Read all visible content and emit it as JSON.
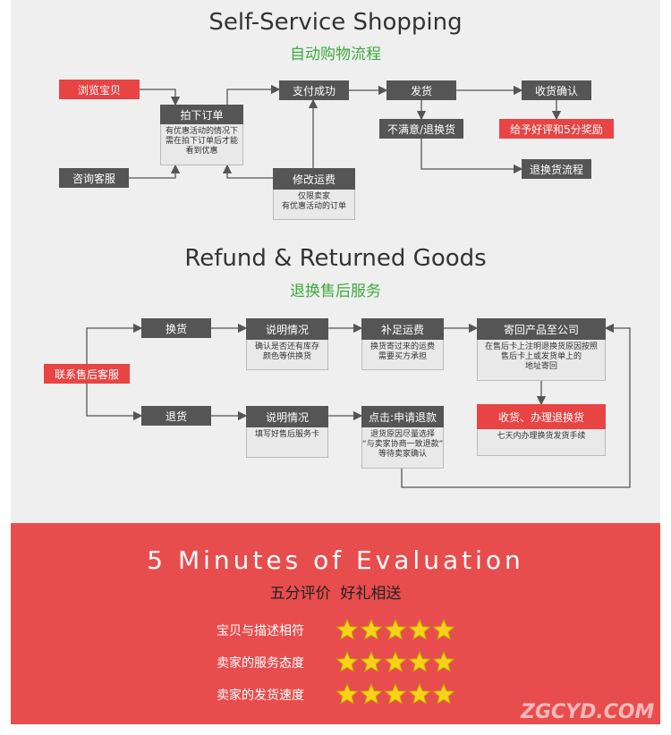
{
  "self_service": {
    "title": "Self-Service Shopping",
    "subtitle": "自动购物流程",
    "nodes": [
      {
        "label": "浏览宝贝"
      },
      {
        "label": "咨询客服"
      },
      {
        "label": "拍下订单",
        "note": [
          "有优惠活动的情况下",
          "需在拍下订单后才能",
          "看到优惠"
        ]
      },
      {
        "label": "支付成功"
      },
      {
        "label": "修改运费",
        "note": [
          "仅限卖家",
          "有优惠活动的订单"
        ]
      },
      {
        "label": "发货"
      },
      {
        "label": "不满意/退换货"
      },
      {
        "label": "收货确认"
      },
      {
        "label": "给予好评和5分奖励"
      },
      {
        "label": "退换货流程"
      }
    ]
  },
  "refund": {
    "title": "Refund & Returned Goods",
    "subtitle": "退换售后服务",
    "nodes": [
      {
        "label": "联系售后客服"
      },
      {
        "label": "换货"
      },
      {
        "label": "退货"
      },
      {
        "label": "说明情况",
        "note": [
          "确认是否还有库存",
          "颜色等供换货"
        ]
      },
      {
        "label": "补足运费",
        "note": [
          "换货寄过来的运费",
          "需要买方承担"
        ]
      },
      {
        "label": "寄回产品至公司",
        "note": [
          "在售后卡上注明退换货原因按照",
          "售后卡上或发货单上的",
          "地址寄回"
        ]
      },
      {
        "label": "收货、办理退换货",
        "note": [
          "七天内办理换货发货手续"
        ]
      },
      {
        "label": "说明情况",
        "note": [
          "填写好售后服务卡"
        ]
      },
      {
        "label": "点击:申请退款",
        "note": [
          "退货原因尽量选择",
          "“与卖家协商一致退款”",
          "等待卖家确认"
        ]
      }
    ]
  },
  "evaluation": {
    "title": "5 Minutes of Evaluation",
    "subtitle": "五分评价  好礼相送",
    "rows": [
      {
        "label": "宝贝与描述相符",
        "rating": 5
      },
      {
        "label": "卖家的服务态度",
        "rating": 5
      },
      {
        "label": "卖家的发货速度",
        "rating": 5
      }
    ],
    "watermark": "ZGCYD.COM"
  }
}
